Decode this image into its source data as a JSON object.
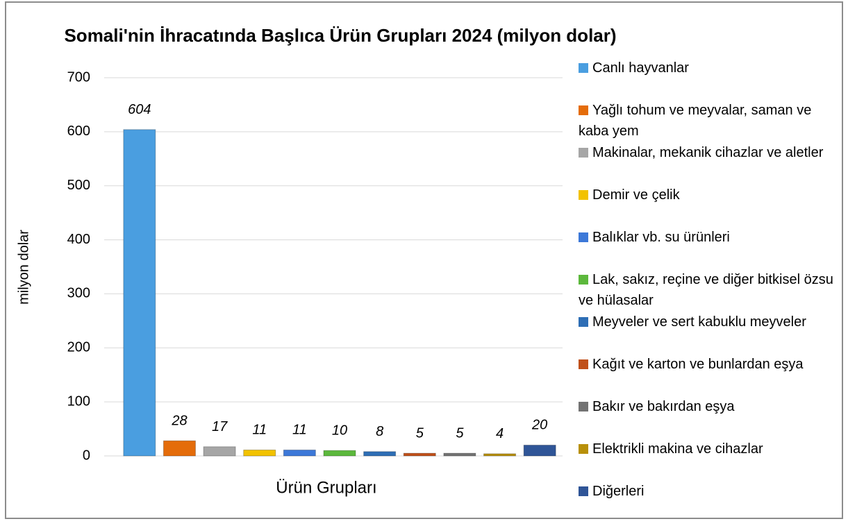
{
  "chart_data": {
    "type": "bar",
    "title": "Somali'nin İhracatında Başlıca Ürün Grupları 2024 (milyon dolar)",
    "x_label": "Ürün Grupları",
    "y_label": "milyon dolar",
    "categories": [
      "Canlı hayvanlar",
      "Yağlı tohum ve meyvalar, saman ve kaba yem",
      "Makinalar, mekanik cihazlar ve aletler",
      "Demir ve çelik",
      "Balıklar vb. su ürünleri",
      "Lak, sakız, reçine ve diğer bitkisel özsu ve hülasalar",
      "Meyveler ve sert kabuklu meyveler",
      "Kağıt ve karton ve bunlardan eşya",
      "Bakır ve bakırdan eşya",
      "Elektrikli makina ve cihazlar",
      "Diğerleri"
    ],
    "values": [
      604,
      28,
      17,
      11,
      11,
      10,
      8,
      5,
      5,
      4,
      20
    ],
    "colors": [
      "#4a9ee0",
      "#e46c0a",
      "#a6a6a6",
      "#f2c200",
      "#3c78d8",
      "#5cb83c",
      "#2e6eb5",
      "#c0501a",
      "#737373",
      "#b8900a",
      "#2f5597"
    ],
    "ylim": [
      0,
      700
    ],
    "yticks": [
      0,
      100,
      200,
      300,
      400,
      500,
      600,
      700
    ],
    "grid": true,
    "legend": "right"
  }
}
